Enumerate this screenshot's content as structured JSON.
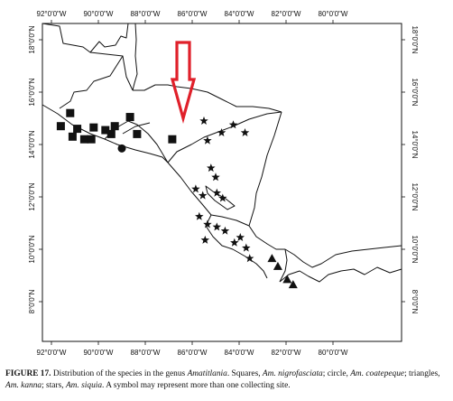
{
  "map": {
    "longitude_labels": [
      "92°0'0\"W",
      "90°0'0\"W",
      "88°0'0\"W",
      "86°0'0\"W",
      "84°0'0\"W",
      "82°0'0\"W",
      "80°0'0\"W"
    ],
    "latitude_labels": [
      "18°0'0\"N",
      "16°0'0\"N",
      "14°0'0\"N",
      "12°0'0\"N",
      "10°0'0\"N",
      "8°0'0\"N"
    ],
    "arrow_color": "#e0202a",
    "symbols": {
      "squares": [
        {
          "lon": -91.6,
          "lat": 14.7
        },
        {
          "lon": -91.2,
          "lat": 15.2
        },
        {
          "lon": -90.9,
          "lat": 14.6
        },
        {
          "lon": -91.1,
          "lat": 14.3
        },
        {
          "lon": -90.6,
          "lat": 14.2
        },
        {
          "lon": -90.3,
          "lat": 14.2
        },
        {
          "lon": -90.2,
          "lat": 14.65
        },
        {
          "lon": -89.7,
          "lat": 14.55
        },
        {
          "lon": -89.45,
          "lat": 14.4
        },
        {
          "lon": -89.3,
          "lat": 14.7
        },
        {
          "lon": -88.65,
          "lat": 15.05
        },
        {
          "lon": -88.35,
          "lat": 14.4
        },
        {
          "lon": -86.85,
          "lat": 14.2
        }
      ],
      "circles": [
        {
          "lon": -89.0,
          "lat": 13.85
        }
      ],
      "stars": [
        {
          "lon": -85.5,
          "lat": 14.9
        },
        {
          "lon": -85.35,
          "lat": 14.15
        },
        {
          "lon": -84.75,
          "lat": 14.45
        },
        {
          "lon": -84.25,
          "lat": 14.75
        },
        {
          "lon": -83.75,
          "lat": 14.45
        },
        {
          "lon": -85.2,
          "lat": 13.1
        },
        {
          "lon": -85.0,
          "lat": 12.75
        },
        {
          "lon": -85.85,
          "lat": 12.3
        },
        {
          "lon": -85.55,
          "lat": 12.05
        },
        {
          "lon": -84.95,
          "lat": 12.15
        },
        {
          "lon": -84.7,
          "lat": 11.95
        },
        {
          "lon": -85.7,
          "lat": 11.25
        },
        {
          "lon": -85.35,
          "lat": 10.95
        },
        {
          "lon": -84.95,
          "lat": 10.85
        },
        {
          "lon": -84.6,
          "lat": 10.7
        },
        {
          "lon": -85.45,
          "lat": 10.35
        },
        {
          "lon": -84.2,
          "lat": 10.25
        },
        {
          "lon": -83.95,
          "lat": 10.45
        },
        {
          "lon": -83.7,
          "lat": 10.05
        },
        {
          "lon": -83.55,
          "lat": 9.65
        }
      ],
      "triangles": [
        {
          "lon": -82.6,
          "lat": 9.65
        },
        {
          "lon": -82.35,
          "lat": 9.35
        },
        {
          "lon": -81.95,
          "lat": 8.85
        },
        {
          "lon": -81.7,
          "lat": 8.65
        }
      ]
    }
  },
  "caption": {
    "figure_label": "FIGURE 17.",
    "t1": " Distribution of the species in the genus ",
    "genus": "Amatitlania",
    "t2": ". Squares, ",
    "sp1": "Am. nigrofasciata",
    "t3": "; circle, ",
    "sp2": "Am. coatepeque",
    "t4": "; triangles, ",
    "sp3": "Am. kanna",
    "t5": "; stars, ",
    "sp4": "Am. siquia",
    "t6": ". A symbol may represent more than one collecting site."
  }
}
